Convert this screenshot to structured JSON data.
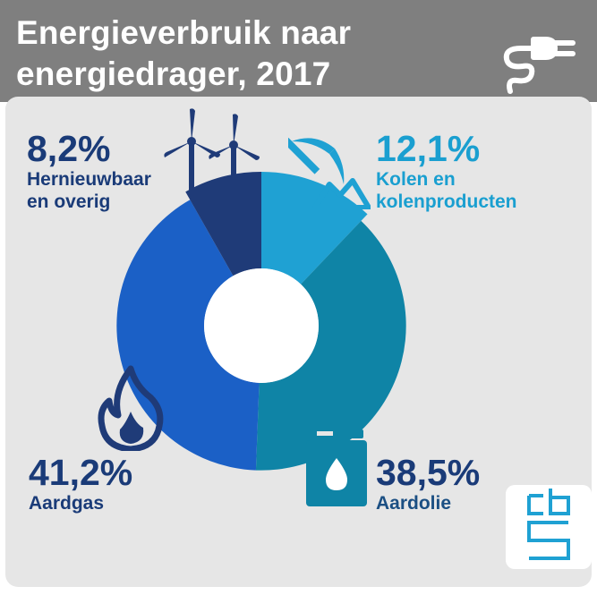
{
  "title": {
    "line1": "Energieverbruik naar",
    "line2": "energiedrager, 2017"
  },
  "colors": {
    "header": "#7f7f7f",
    "panel": "#e6e6e6",
    "hernieuwbaar": "#1f3b78",
    "kolen": "#1fa1d3",
    "aardolie": "#0f84a6",
    "aardgas": "#1b60c6",
    "label_dark": "#1a3b78",
    "label_light": "#1a9fd0"
  },
  "icons": [
    "plug-icon",
    "wind-turbine-icon",
    "pickaxe-coal-icon",
    "flame-icon",
    "oil-barrel-icon",
    "cbs-logo"
  ],
  "chart_data": {
    "type": "pie",
    "donut": true,
    "title": "Energieverbruik naar energiedrager, 2017",
    "unit": "%",
    "slices": [
      {
        "label": "Kolen en kolenproducten",
        "value": 12.1,
        "display": "12,1%",
        "color": "#1fa1d3",
        "radius": 1.0
      },
      {
        "label": "Aardolie",
        "value": 38.5,
        "display": "38,5%",
        "color": "#0f84a6",
        "radius": 0.94
      },
      {
        "label": "Aardgas",
        "value": 41.2,
        "display": "41,2%",
        "color": "#1b60c6",
        "radius": 0.94
      },
      {
        "label": "Hernieuwbaar en overig",
        "value": 8.2,
        "display": "8,2%",
        "color": "#1f3b78",
        "radius": 1.0
      }
    ],
    "labels": {
      "hernieuwbaar": {
        "pct": "8,2%",
        "line1": "Hernieuwbaar",
        "line2": "en overig"
      },
      "kolen": {
        "pct": "12,1%",
        "line1": "Kolen en",
        "line2": "kolenproducten"
      },
      "aardgas": {
        "pct": "41,2%",
        "line1": "Aardgas"
      },
      "aardolie": {
        "pct": "38,5%",
        "line1": "Aardolie"
      }
    }
  }
}
